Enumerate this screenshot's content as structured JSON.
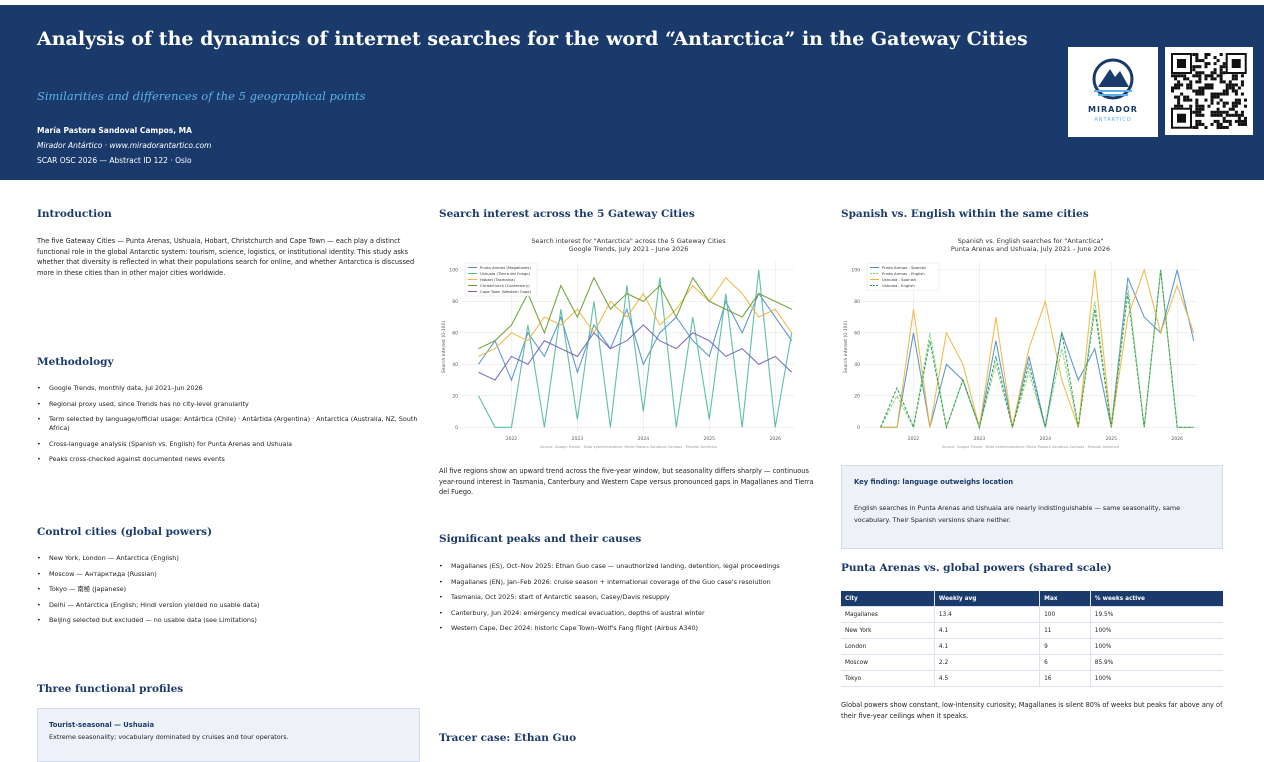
{
  "header": {
    "title": "Analysis of the dynamics of internet searches for the word “Antarctica” in the Gateway Cities",
    "subtitle": "Similarities and differences of the 5 geographical points",
    "author": "María Pastora Sandoval Campos, MA",
    "affiliation": "Mirador Antártico · www.miradorantartico.com",
    "event": "SCAR OSC 2026 — Abstract ID 122 · Oslo",
    "logo": {
      "name": "MIRADOR",
      "subname": "ANTÁRTICO"
    }
  },
  "introduction": {
    "heading": "Introduction",
    "text": "The five Gateway Cities — Punta Arenas, Ushuaia, Hobart, Christchurch and Cape Town — each play a distinct functional role in the global Antarctic system: tourism, science, logistics, or institutional identity. This study asks whether that diversity is reflected in what their populations search for online, and whether Antarctica is discussed more in these cities than in other major cities worldwide."
  },
  "methodology": {
    "heading": "Methodology",
    "items": [
      "Google Trends, monthly data, Jul 2021–Jun 2026",
      "Regional proxy used, since Trends has no city-level granularity",
      "Term selected by language/official usage: Antártica (Chile) · Antártida (Argentina) · Antarctica (Australia, NZ, South Africa)",
      "Cross-language analysis (Spanish vs. English) for Punta Arenas and Ushuaia",
      "Peaks cross-checked against documented news events"
    ]
  },
  "control_cities": {
    "heading": "Control cities (global powers)",
    "items": [
      "New York, London — Antarctica (English)",
      "Moscow — Антарктида (Russian)",
      "Tokyo — 南極 (Japanese)",
      "Delhi — Antarctica (English; Hindi version yielded no usable data)",
      "Beijing selected but excluded — no usable data (see Limitations)"
    ]
  },
  "profiles": {
    "heading": "Three functional profiles",
    "cards": [
      {
        "title": "Tourist-seasonal — Ushuaia",
        "text": "Extreme seasonality; vocabulary dominated by cruises and tour operators."
      }
    ]
  },
  "search_interest": {
    "heading": "Search interest across the 5 Gateway Cities",
    "caption": "All five regions show an upward trend across the five-year window, but seasonality differs sharply — continuous year-round interest in Tasmania, Canterbury and Western Cape versus pronounced gaps in Magallanes and Tierra del Fuego."
  },
  "peaks": {
    "heading": "Significant peaks and their causes",
    "items": [
      "Magallanes (ES), Oct–Nov 2025: Ethan Guo case — unauthorized landing, detention, legal proceedings",
      "Magallanes (EN), Jan–Feb 2026: cruise season + international coverage of the Guo case's resolution",
      "Tasmania, Oct 2025: start of Antarctic season, Casey/Davis resupply",
      "Canterbury, Jun 2024: emergency medical evacuation, depths of austral winter",
      "Western Cape, Dec 2024: historic Cape Town–Wolf's Fang flight (Airbus A340)"
    ]
  },
  "tracer": {
    "heading": "Tracer case: Ethan Guo"
  },
  "language": {
    "heading": "Spanish vs. English within the same cities"
  },
  "key_finding": {
    "title": "Key finding: language outweighs location",
    "text": "English searches in Punta Arenas and Ushuaia are nearly indistinguishable — same seasonality, same vocabulary. Their Spanish versions share neither."
  },
  "global_powers": {
    "heading": "Punta Arenas vs. global powers (shared scale)",
    "table": {
      "header": [
        "City",
        "Weekly avg",
        "Max",
        "% weeks active"
      ],
      "rows": [
        [
          "Magallanes",
          "13.4",
          "100",
          "19.5%"
        ],
        [
          "New York",
          "4.1",
          "11",
          "100%"
        ],
        [
          "London",
          "4.1",
          "9",
          "100%"
        ],
        [
          "Moscow",
          "2.2",
          "6",
          "85.9%"
        ],
        [
          "Tokyo",
          "4.5",
          "16",
          "100%"
        ]
      ]
    },
    "note": "Global powers show constant, low-intensity curiosity; Magallanes is silent 80% of weeks but peaks far above any of their five-year ceilings when it speaks."
  },
  "chart_data": [
    {
      "type": "line",
      "title": "Search interest for \"Antarctica\" across the 5 Gateway Cities",
      "subtitle": "Google Trends, July 2021 - June 2026",
      "ylabel": "Search interest (0-100)",
      "source": "Source: Google Trends · Data systematization: María Pastora Sandoval Campos · Mirador Antártico",
      "x": [
        2021.5,
        2021.75,
        2022,
        2022.25,
        2022.5,
        2022.75,
        2023,
        2023.25,
        2023.5,
        2023.75,
        2024,
        2024.25,
        2024.5,
        2024.75,
        2025,
        2025.25,
        2025.5,
        2025.75,
        2026,
        2026.25
      ],
      "xlim": [
        2021.25,
        2026.3
      ],
      "xticks": [
        2022,
        2023,
        2024,
        2025,
        2026
      ],
      "ylim": [
        -3,
        105
      ],
      "yticks": [
        0,
        20,
        40,
        60,
        80,
        100
      ],
      "grid": true,
      "legend": "upper-left",
      "series": [
        {
          "name": "Punta Arenas (Magallanes)",
          "color": "#4c8ed0",
          "values": [
            40,
            55,
            30,
            60,
            45,
            70,
            35,
            65,
            50,
            75,
            40,
            60,
            70,
            55,
            45,
            80,
            60,
            85,
            70,
            55
          ]
        },
        {
          "name": "Ushuaia (Tierra del Fuego)",
          "color": "#4fb89a",
          "values": [
            20,
            0,
            0,
            65,
            0,
            75,
            5,
            80,
            0,
            90,
            10,
            95,
            0,
            70,
            5,
            85,
            0,
            100,
            0,
            60
          ]
        },
        {
          "name": "Hobart (Tasmania)",
          "color": "#f0b63c",
          "values": [
            45,
            50,
            60,
            55,
            70,
            65,
            75,
            60,
            80,
            70,
            85,
            65,
            75,
            90,
            80,
            95,
            85,
            70,
            75,
            60
          ]
        },
        {
          "name": "Christchurch (Canterbury)",
          "color": "#6a9a2e",
          "values": [
            50,
            55,
            65,
            85,
            60,
            90,
            70,
            95,
            75,
            85,
            80,
            90,
            70,
            95,
            80,
            75,
            70,
            85,
            80,
            75
          ]
        },
        {
          "name": "Cape Town (Western Cape)",
          "color": "#7060b8",
          "values": [
            35,
            30,
            45,
            40,
            55,
            50,
            45,
            60,
            50,
            55,
            65,
            55,
            50,
            60,
            55,
            45,
            50,
            40,
            45,
            35
          ]
        }
      ]
    },
    {
      "type": "line",
      "title": "Spanish vs. English searches for \"Antarctica\"",
      "subtitle": "Punta Arenas and Ushuaia, July 2021 - June 2026",
      "ylabel": "Search interest (0-100)",
      "source": "Source: Google Trends · Data systematization: María Pastora Sandoval Campos · Mirador Antártico",
      "x": [
        2021.5,
        2021.75,
        2022,
        2022.25,
        2022.5,
        2022.75,
        2023,
        2023.25,
        2023.5,
        2023.75,
        2024,
        2024.25,
        2024.5,
        2024.75,
        2025,
        2025.25,
        2025.5,
        2025.75,
        2026,
        2026.25
      ],
      "xlim": [
        2021.25,
        2026.3
      ],
      "xticks": [
        2022,
        2023,
        2024,
        2025,
        2026
      ],
      "ylim": [
        -3,
        105
      ],
      "yticks": [
        0,
        20,
        40,
        60,
        80,
        100
      ],
      "grid": true,
      "legend": "upper-left",
      "series": [
        {
          "name": "Punta Arenas - Spanish",
          "color": "#4c8ed0",
          "dash": false,
          "values": [
            0,
            0,
            60,
            0,
            40,
            30,
            0,
            55,
            0,
            45,
            0,
            60,
            30,
            50,
            0,
            95,
            70,
            60,
            100,
            55
          ]
        },
        {
          "name": "Punta Arenas - English",
          "color": "#7fcf7a",
          "dash": true,
          "values": [
            0,
            20,
            0,
            60,
            0,
            30,
            0,
            40,
            0,
            35,
            0,
            50,
            0,
            80,
            0,
            90,
            0,
            100,
            0,
            0
          ]
        },
        {
          "name": "Ushuaia - Spanish",
          "color": "#f0b63c",
          "dash": false,
          "values": [
            0,
            0,
            75,
            0,
            60,
            40,
            0,
            70,
            0,
            50,
            80,
            30,
            0,
            100,
            0,
            70,
            100,
            60,
            90,
            60
          ]
        },
        {
          "name": "Ushuaia - English",
          "color": "#2e9a4a",
          "dash": true,
          "values": [
            0,
            25,
            0,
            55,
            0,
            30,
            0,
            45,
            0,
            40,
            0,
            60,
            0,
            75,
            0,
            85,
            0,
            100,
            0,
            0
          ]
        }
      ]
    }
  ]
}
